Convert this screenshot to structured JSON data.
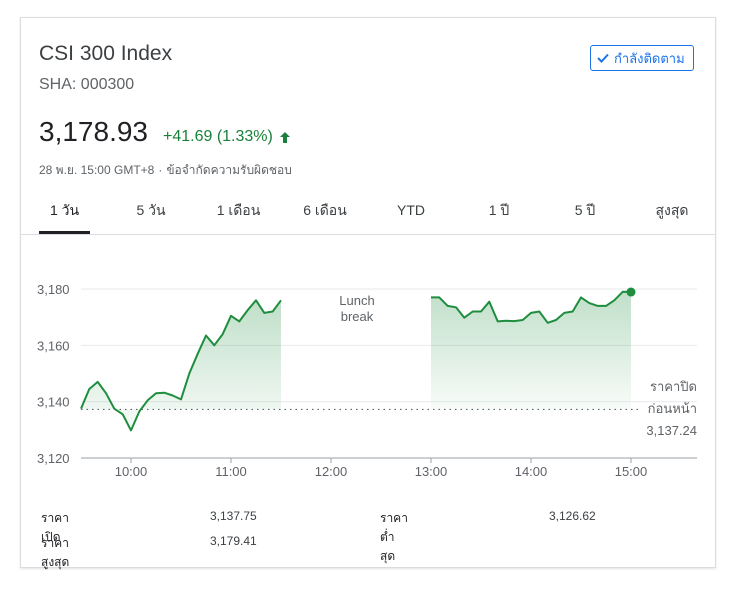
{
  "header": {
    "title": "CSI 300 Index",
    "symbol": "SHA: 000300",
    "follow_label": "กำลังติดตาม"
  },
  "quote": {
    "price": "3,178.93",
    "change": "+41.69 (1.33%)",
    "timestamp": "28 พ.ย. 15:00 GMT+8",
    "separator": "·",
    "disclaimer": "ข้อจำกัดความรับผิดชอบ",
    "up_color": "#188038"
  },
  "tabs": [
    "1 วัน",
    "5 วัน",
    "1 เดือน",
    "6 เดือน",
    "YTD",
    "1 ปี",
    "5 ปี",
    "สูงสุด"
  ],
  "chart_data": {
    "type": "area",
    "x_ticks": [
      "10:00",
      "11:00",
      "12:00",
      "13:00",
      "14:00",
      "15:00"
    ],
    "y_ticks": [
      "3,180",
      "3,160",
      "3,140",
      "3,120"
    ],
    "ylim": [
      3120,
      3180
    ],
    "annotation_break": "Lunch\nbreak",
    "prev_close_label_line1": "ราคาปิด",
    "prev_close_label_line2": "ก่อนหน้า",
    "prev_close_value": "3,137.24",
    "prev_close": 3137.24,
    "line_color": "#1e8e3e",
    "series": [
      {
        "session": "morning",
        "points": [
          [
            "09:30",
            3137.5
          ],
          [
            "09:35",
            3144.5
          ],
          [
            "09:40",
            3147.0
          ],
          [
            "09:45",
            3143.0
          ],
          [
            "09:50",
            3137.5
          ],
          [
            "09:55",
            3135.5
          ],
          [
            "10:00",
            3129.8
          ],
          [
            "10:05",
            3136.5
          ],
          [
            "10:10",
            3140.5
          ],
          [
            "10:15",
            3143.0
          ],
          [
            "10:20",
            3143.2
          ],
          [
            "10:25",
            3142.2
          ],
          [
            "10:30",
            3140.8
          ],
          [
            "10:35",
            3150.0
          ],
          [
            "10:40",
            3157.0
          ],
          [
            "10:45",
            3163.5
          ],
          [
            "10:50",
            3160.0
          ],
          [
            "10:55",
            3164.0
          ],
          [
            "11:00",
            3170.5
          ],
          [
            "11:05",
            3168.5
          ],
          [
            "11:10",
            3172.5
          ],
          [
            "11:15",
            3176.0
          ],
          [
            "11:20",
            3171.5
          ],
          [
            "11:25",
            3172.0
          ],
          [
            "11:30",
            3176.0
          ]
        ]
      },
      {
        "session": "afternoon",
        "points": [
          [
            "13:00",
            3177.0
          ],
          [
            "13:05",
            3177.0
          ],
          [
            "13:10",
            3174.0
          ],
          [
            "13:15",
            3173.5
          ],
          [
            "13:20",
            3169.8
          ],
          [
            "13:25",
            3172.0
          ],
          [
            "13:30",
            3172.0
          ],
          [
            "13:35",
            3175.5
          ],
          [
            "13:40",
            3168.5
          ],
          [
            "13:45",
            3168.7
          ],
          [
            "13:50",
            3168.6
          ],
          [
            "13:55",
            3169.0
          ],
          [
            "14:00",
            3171.5
          ],
          [
            "14:05",
            3172.0
          ],
          [
            "14:10",
            3168.0
          ],
          [
            "14:15",
            3169.0
          ],
          [
            "14:20",
            3171.5
          ],
          [
            "14:25",
            3172.0
          ],
          [
            "14:30",
            3177.0
          ],
          [
            "14:35",
            3175.0
          ],
          [
            "14:40",
            3174.0
          ],
          [
            "14:45",
            3174.0
          ],
          [
            "14:50",
            3176.0
          ],
          [
            "14:55",
            3179.0
          ],
          [
            "15:00",
            3178.93
          ]
        ]
      }
    ]
  },
  "stats": {
    "open_label": "ราคาเปิด",
    "open_value": "3,137.75",
    "low_label": "ราคาต่ำสุด",
    "low_value": "3,126.62",
    "high_label": "ราคาสูงสุด",
    "high_value": "3,179.41"
  }
}
